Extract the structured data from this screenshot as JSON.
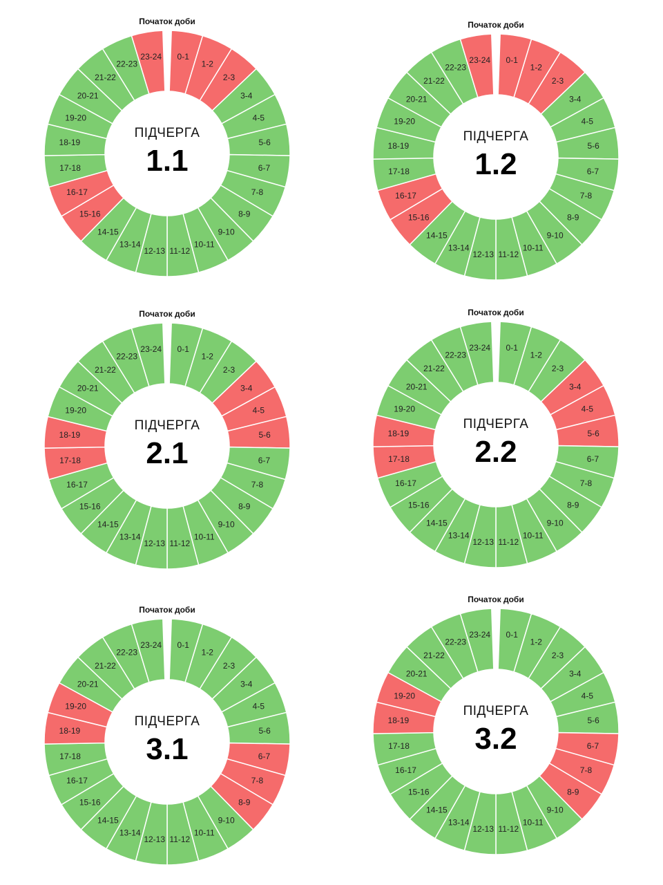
{
  "colors": {
    "on": "#7dcd70",
    "off": "#f56b6b",
    "divider": "#ffffff"
  },
  "start_label": "Початок доби",
  "center_word": "ПІДЧЕРГА",
  "hours": [
    "0-1",
    "1-2",
    "2-3",
    "3-4",
    "4-5",
    "5-6",
    "6-7",
    "7-8",
    "8-9",
    "9-10",
    "10-11",
    "11-12",
    "12-13",
    "13-14",
    "14-15",
    "15-16",
    "16-17",
    "17-18",
    "18-19",
    "19-20",
    "20-21",
    "21-22",
    "22-23",
    "23-24"
  ],
  "chart_data": [
    {
      "type": "pie",
      "title": "1.1",
      "categories": [
        "0-1",
        "1-2",
        "2-3",
        "3-4",
        "4-5",
        "5-6",
        "6-7",
        "7-8",
        "8-9",
        "9-10",
        "10-11",
        "11-12",
        "12-13",
        "13-14",
        "14-15",
        "15-16",
        "16-17",
        "17-18",
        "18-19",
        "19-20",
        "20-21",
        "21-22",
        "22-23",
        "23-24"
      ],
      "outage": [
        1,
        1,
        1,
        0,
        0,
        0,
        0,
        0,
        0,
        0,
        0,
        0,
        0,
        0,
        0,
        1,
        1,
        0,
        0,
        0,
        0,
        0,
        0,
        1
      ]
    },
    {
      "type": "pie",
      "title": "1.2",
      "categories": [
        "0-1",
        "1-2",
        "2-3",
        "3-4",
        "4-5",
        "5-6",
        "6-7",
        "7-8",
        "8-9",
        "9-10",
        "10-11",
        "11-12",
        "12-13",
        "13-14",
        "14-15",
        "15-16",
        "16-17",
        "17-18",
        "18-19",
        "19-20",
        "20-21",
        "21-22",
        "22-23",
        "23-24"
      ],
      "outage": [
        1,
        1,
        1,
        0,
        0,
        0,
        0,
        0,
        0,
        0,
        0,
        0,
        0,
        0,
        0,
        1,
        1,
        0,
        0,
        0,
        0,
        0,
        0,
        1
      ]
    },
    {
      "type": "pie",
      "title": "2.1",
      "categories": [
        "0-1",
        "1-2",
        "2-3",
        "3-4",
        "4-5",
        "5-6",
        "6-7",
        "7-8",
        "8-9",
        "9-10",
        "10-11",
        "11-12",
        "12-13",
        "13-14",
        "14-15",
        "15-16",
        "16-17",
        "17-18",
        "18-19",
        "19-20",
        "20-21",
        "21-22",
        "22-23",
        "23-24"
      ],
      "outage": [
        0,
        0,
        0,
        1,
        1,
        1,
        0,
        0,
        0,
        0,
        0,
        0,
        0,
        0,
        0,
        0,
        0,
        1,
        1,
        0,
        0,
        0,
        0,
        0
      ]
    },
    {
      "type": "pie",
      "title": "2.2",
      "categories": [
        "0-1",
        "1-2",
        "2-3",
        "3-4",
        "4-5",
        "5-6",
        "6-7",
        "7-8",
        "8-9",
        "9-10",
        "10-11",
        "11-12",
        "12-13",
        "13-14",
        "14-15",
        "15-16",
        "16-17",
        "17-18",
        "18-19",
        "19-20",
        "20-21",
        "21-22",
        "22-23",
        "23-24"
      ],
      "outage": [
        0,
        0,
        0,
        1,
        1,
        1,
        0,
        0,
        0,
        0,
        0,
        0,
        0,
        0,
        0,
        0,
        0,
        1,
        1,
        0,
        0,
        0,
        0,
        0
      ]
    },
    {
      "type": "pie",
      "title": "3.1",
      "categories": [
        "0-1",
        "1-2",
        "2-3",
        "3-4",
        "4-5",
        "5-6",
        "6-7",
        "7-8",
        "8-9",
        "9-10",
        "10-11",
        "11-12",
        "12-13",
        "13-14",
        "14-15",
        "15-16",
        "16-17",
        "17-18",
        "18-19",
        "19-20",
        "20-21",
        "21-22",
        "22-23",
        "23-24"
      ],
      "outage": [
        0,
        0,
        0,
        0,
        0,
        0,
        1,
        1,
        1,
        0,
        0,
        0,
        0,
        0,
        0,
        0,
        0,
        0,
        1,
        1,
        0,
        0,
        0,
        0
      ]
    },
    {
      "type": "pie",
      "title": "3.2",
      "categories": [
        "0-1",
        "1-2",
        "2-3",
        "3-4",
        "4-5",
        "5-6",
        "6-7",
        "7-8",
        "8-9",
        "9-10",
        "10-11",
        "11-12",
        "12-13",
        "13-14",
        "14-15",
        "15-16",
        "16-17",
        "17-18",
        "18-19",
        "19-20",
        "20-21",
        "21-22",
        "22-23",
        "23-24"
      ],
      "outage": [
        0,
        0,
        0,
        0,
        0,
        0,
        1,
        1,
        1,
        0,
        0,
        0,
        0,
        0,
        0,
        0,
        0,
        0,
        1,
        1,
        0,
        0,
        0,
        0
      ]
    }
  ]
}
